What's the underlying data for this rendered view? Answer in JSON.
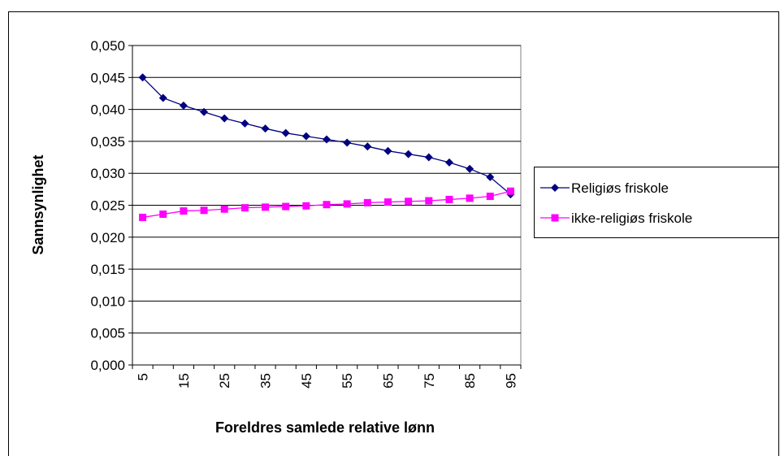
{
  "chart_data": {
    "type": "line",
    "x_label": "Foreldres samlede relative lønn",
    "y_label": "Sannsynlighet",
    "categories": [
      "5",
      null,
      "15",
      null,
      "25",
      null,
      "35",
      null,
      "45",
      null,
      "55",
      null,
      "65",
      null,
      "75",
      null,
      "85",
      null,
      "95"
    ],
    "series": [
      {
        "name": "Religiøs friskole",
        "color": "#000080",
        "marker": "diamond",
        "values": [
          0.045,
          0.0418,
          0.0406,
          0.0396,
          0.0386,
          0.0378,
          0.037,
          0.0363,
          0.0358,
          0.0353,
          0.0348,
          0.0342,
          0.0335,
          0.033,
          0.0325,
          0.0317,
          0.0307,
          0.0294,
          0.0267
        ]
      },
      {
        "name": "ikke-religiøs friskole",
        "color": "#ff00ff",
        "marker": "square",
        "values": [
          0.0231,
          0.0236,
          0.0241,
          0.0242,
          0.0244,
          0.0246,
          0.0247,
          0.0248,
          0.0249,
          0.0251,
          0.0252,
          0.0254,
          0.0255,
          0.0256,
          0.0257,
          0.0259,
          0.0261,
          0.0264,
          0.0272
        ]
      }
    ],
    "ylim": [
      0,
      0.05
    ],
    "yticks": [
      {
        "value": 0,
        "label": "0,000"
      },
      {
        "value": 0.005,
        "label": "0,005"
      },
      {
        "value": 0.01,
        "label": "0,010"
      },
      {
        "value": 0.015,
        "label": "0,015"
      },
      {
        "value": 0.02,
        "label": "0,020"
      },
      {
        "value": 0.025,
        "label": "0,025"
      },
      {
        "value": 0.03,
        "label": "0,030"
      },
      {
        "value": 0.035,
        "label": "0,035"
      },
      {
        "value": 0.04,
        "label": "0,040"
      },
      {
        "value": 0.045,
        "label": "0,045"
      },
      {
        "value": 0.05,
        "label": "0,050"
      }
    ],
    "grid": true,
    "legend": "right"
  }
}
